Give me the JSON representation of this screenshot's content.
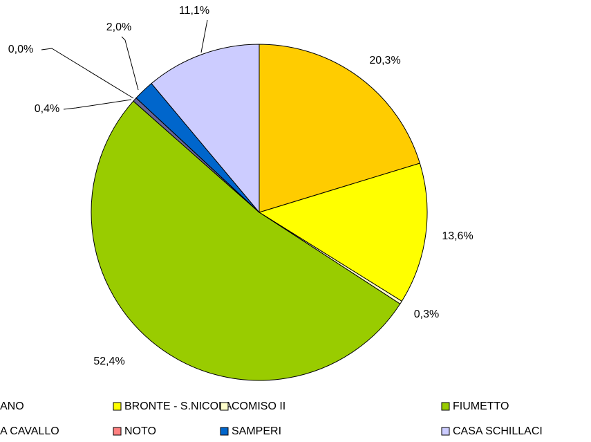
{
  "chart_data": {
    "type": "pie",
    "categories": [
      "ANO",
      "BRONTE - S.NICOLA",
      "COMISO II",
      "FIUMETTO",
      "A CAVALLO",
      "NOTO",
      "SAMPERI",
      "CASA SCHILLACI"
    ],
    "values": [
      20.3,
      13.6,
      0.3,
      52.4,
      0.4,
      0.0,
      2.0,
      11.1
    ],
    "value_labels": [
      "20,3%",
      "13,6%",
      "0,3%",
      "52,4%",
      "0,4%",
      "0,0%",
      "2,0%",
      "11,1%"
    ],
    "colors": [
      "#FFCC00",
      "#FFFF00",
      "#FFFFCC",
      "#99CC00",
      "#666699",
      "#FF8080",
      "#0066CC",
      "#CCCCFF"
    ]
  }
}
